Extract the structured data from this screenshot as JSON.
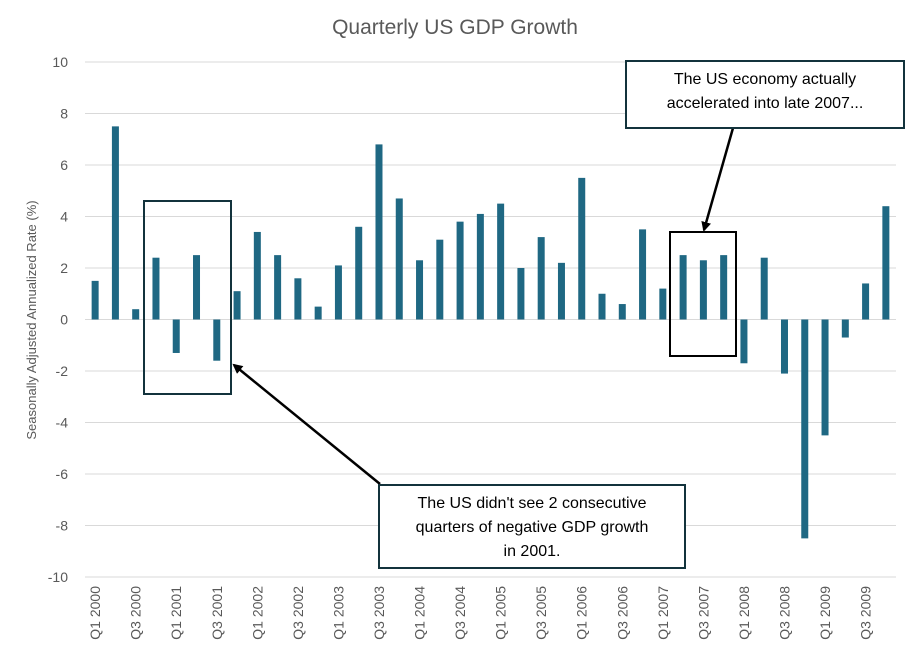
{
  "chart_data": {
    "type": "bar",
    "title": "Quarterly US GDP Growth",
    "ylabel": "Seasonally Adjusted Annualized Rate (%)",
    "xlabel": "",
    "ylim": [
      -10,
      10
    ],
    "yticks": [
      -10,
      -8,
      -6,
      -4,
      -2,
      0,
      2,
      4,
      6,
      8,
      10
    ],
    "grid": true,
    "bar_color": "#1f6883",
    "categories": [
      "Q1 2000",
      "Q2 2000",
      "Q3 2000",
      "Q4 2000",
      "Q1 2001",
      "Q2 2001",
      "Q3 2001",
      "Q4 2001",
      "Q1 2002",
      "Q2 2002",
      "Q3 2002",
      "Q4 2002",
      "Q1 2003",
      "Q2 2003",
      "Q3 2003",
      "Q4 2003",
      "Q1 2004",
      "Q2 2004",
      "Q3 2004",
      "Q4 2004",
      "Q1 2005",
      "Q2 2005",
      "Q3 2005",
      "Q4 2005",
      "Q1 2006",
      "Q2 2006",
      "Q3 2006",
      "Q4 2006",
      "Q1 2007",
      "Q2 2007",
      "Q3 2007",
      "Q4 2007",
      "Q1 2008",
      "Q2 2008",
      "Q3 2008",
      "Q4 2008",
      "Q1 2009",
      "Q2 2009",
      "Q3 2009",
      "Q4 2009"
    ],
    "tick_labels": [
      "Q1 2000",
      "Q3 2000",
      "Q1 2001",
      "Q3 2001",
      "Q1 2002",
      "Q3 2002",
      "Q1 2003",
      "Q3 2003",
      "Q1 2004",
      "Q3 2004",
      "Q1 2005",
      "Q3 2005",
      "Q1 2006",
      "Q3 2006",
      "Q1 2007",
      "Q3 2007",
      "Q1 2008",
      "Q3 2008",
      "Q1 2009",
      "Q3 2009"
    ],
    "values": [
      1.5,
      7.5,
      0.4,
      2.4,
      -1.3,
      2.5,
      -1.6,
      1.1,
      3.4,
      2.5,
      1.6,
      0.5,
      2.1,
      3.6,
      6.8,
      4.7,
      2.3,
      3.1,
      3.8,
      4.1,
      4.5,
      2.0,
      3.2,
      2.2,
      5.5,
      1.0,
      0.6,
      3.5,
      1.2,
      2.5,
      2.3,
      2.5,
      -1.7,
      2.4,
      -2.1,
      -8.5,
      -4.5,
      -0.7,
      1.4,
      4.4
    ],
    "annotations": [
      {
        "lines": [
          "The US didn't see 2 consecutive",
          "quarters of negative GDP growth",
          "in 2001."
        ]
      },
      {
        "lines": [
          "The US economy actually",
          "accelerated  into late 2007..."
        ]
      }
    ]
  }
}
